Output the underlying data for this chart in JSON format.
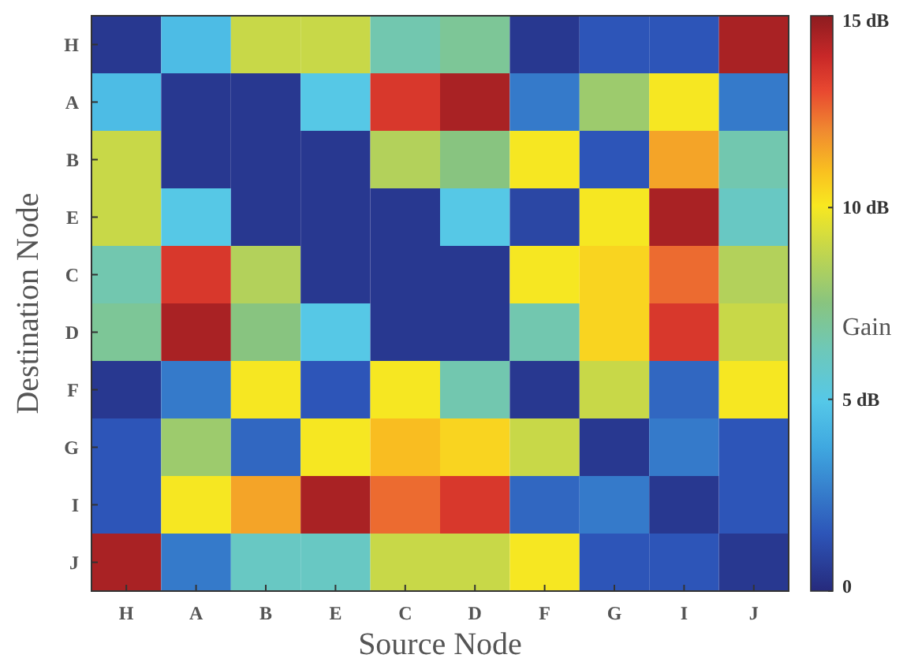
{
  "chart_data": {
    "type": "heatmap",
    "xlabel": "Source Node",
    "ylabel": "Destination Node",
    "clabel": "Gain",
    "categories": [
      "H",
      "A",
      "B",
      "E",
      "C",
      "D",
      "F",
      "G",
      "I",
      "J"
    ],
    "y_categories": [
      "H",
      "A",
      "B",
      "E",
      "C",
      "D",
      "F",
      "G",
      "I",
      "J"
    ],
    "cells": [
      [
        0.5,
        4.5,
        9,
        9,
        6.5,
        7,
        0.5,
        1.5,
        1.5,
        14.5
      ],
      [
        4.5,
        0.5,
        0.5,
        5,
        13.5,
        14.5,
        2.5,
        8,
        10,
        2.5
      ],
      [
        9,
        0.5,
        0.5,
        0.5,
        8.5,
        7.5,
        10,
        1.5,
        11.5,
        6.5
      ],
      [
        9,
        5,
        0.5,
        0.5,
        0.5,
        5,
        1,
        10,
        14.5,
        6
      ],
      [
        6.5,
        13.5,
        8.5,
        0.5,
        0.5,
        0.5,
        10,
        10.5,
        12.5,
        8.5
      ],
      [
        7,
        14.5,
        7.5,
        5,
        0.5,
        0.5,
        6.5,
        10.5,
        13.5,
        9
      ],
      [
        0.5,
        2.5,
        10,
        1.5,
        10,
        6.5,
        0.5,
        9,
        2,
        10
      ],
      [
        1.5,
        8,
        2,
        10,
        11,
        10.5,
        9,
        0.5,
        2.5,
        1.5
      ],
      [
        1.5,
        10,
        11.5,
        14.5,
        12.5,
        13.5,
        2,
        2.5,
        0.5,
        1.5
      ],
      [
        14.5,
        2.5,
        6,
        6,
        9,
        9,
        10,
        1.5,
        1.5,
        0.5
      ]
    ],
    "clim": [
      0,
      15
    ],
    "cticks": [
      {
        "value": 0,
        "label": "0"
      },
      {
        "value": 5,
        "label": "5 dB"
      },
      {
        "value": 10,
        "label": "10 dB"
      },
      {
        "value": 15,
        "label": "15 dB"
      }
    ]
  }
}
